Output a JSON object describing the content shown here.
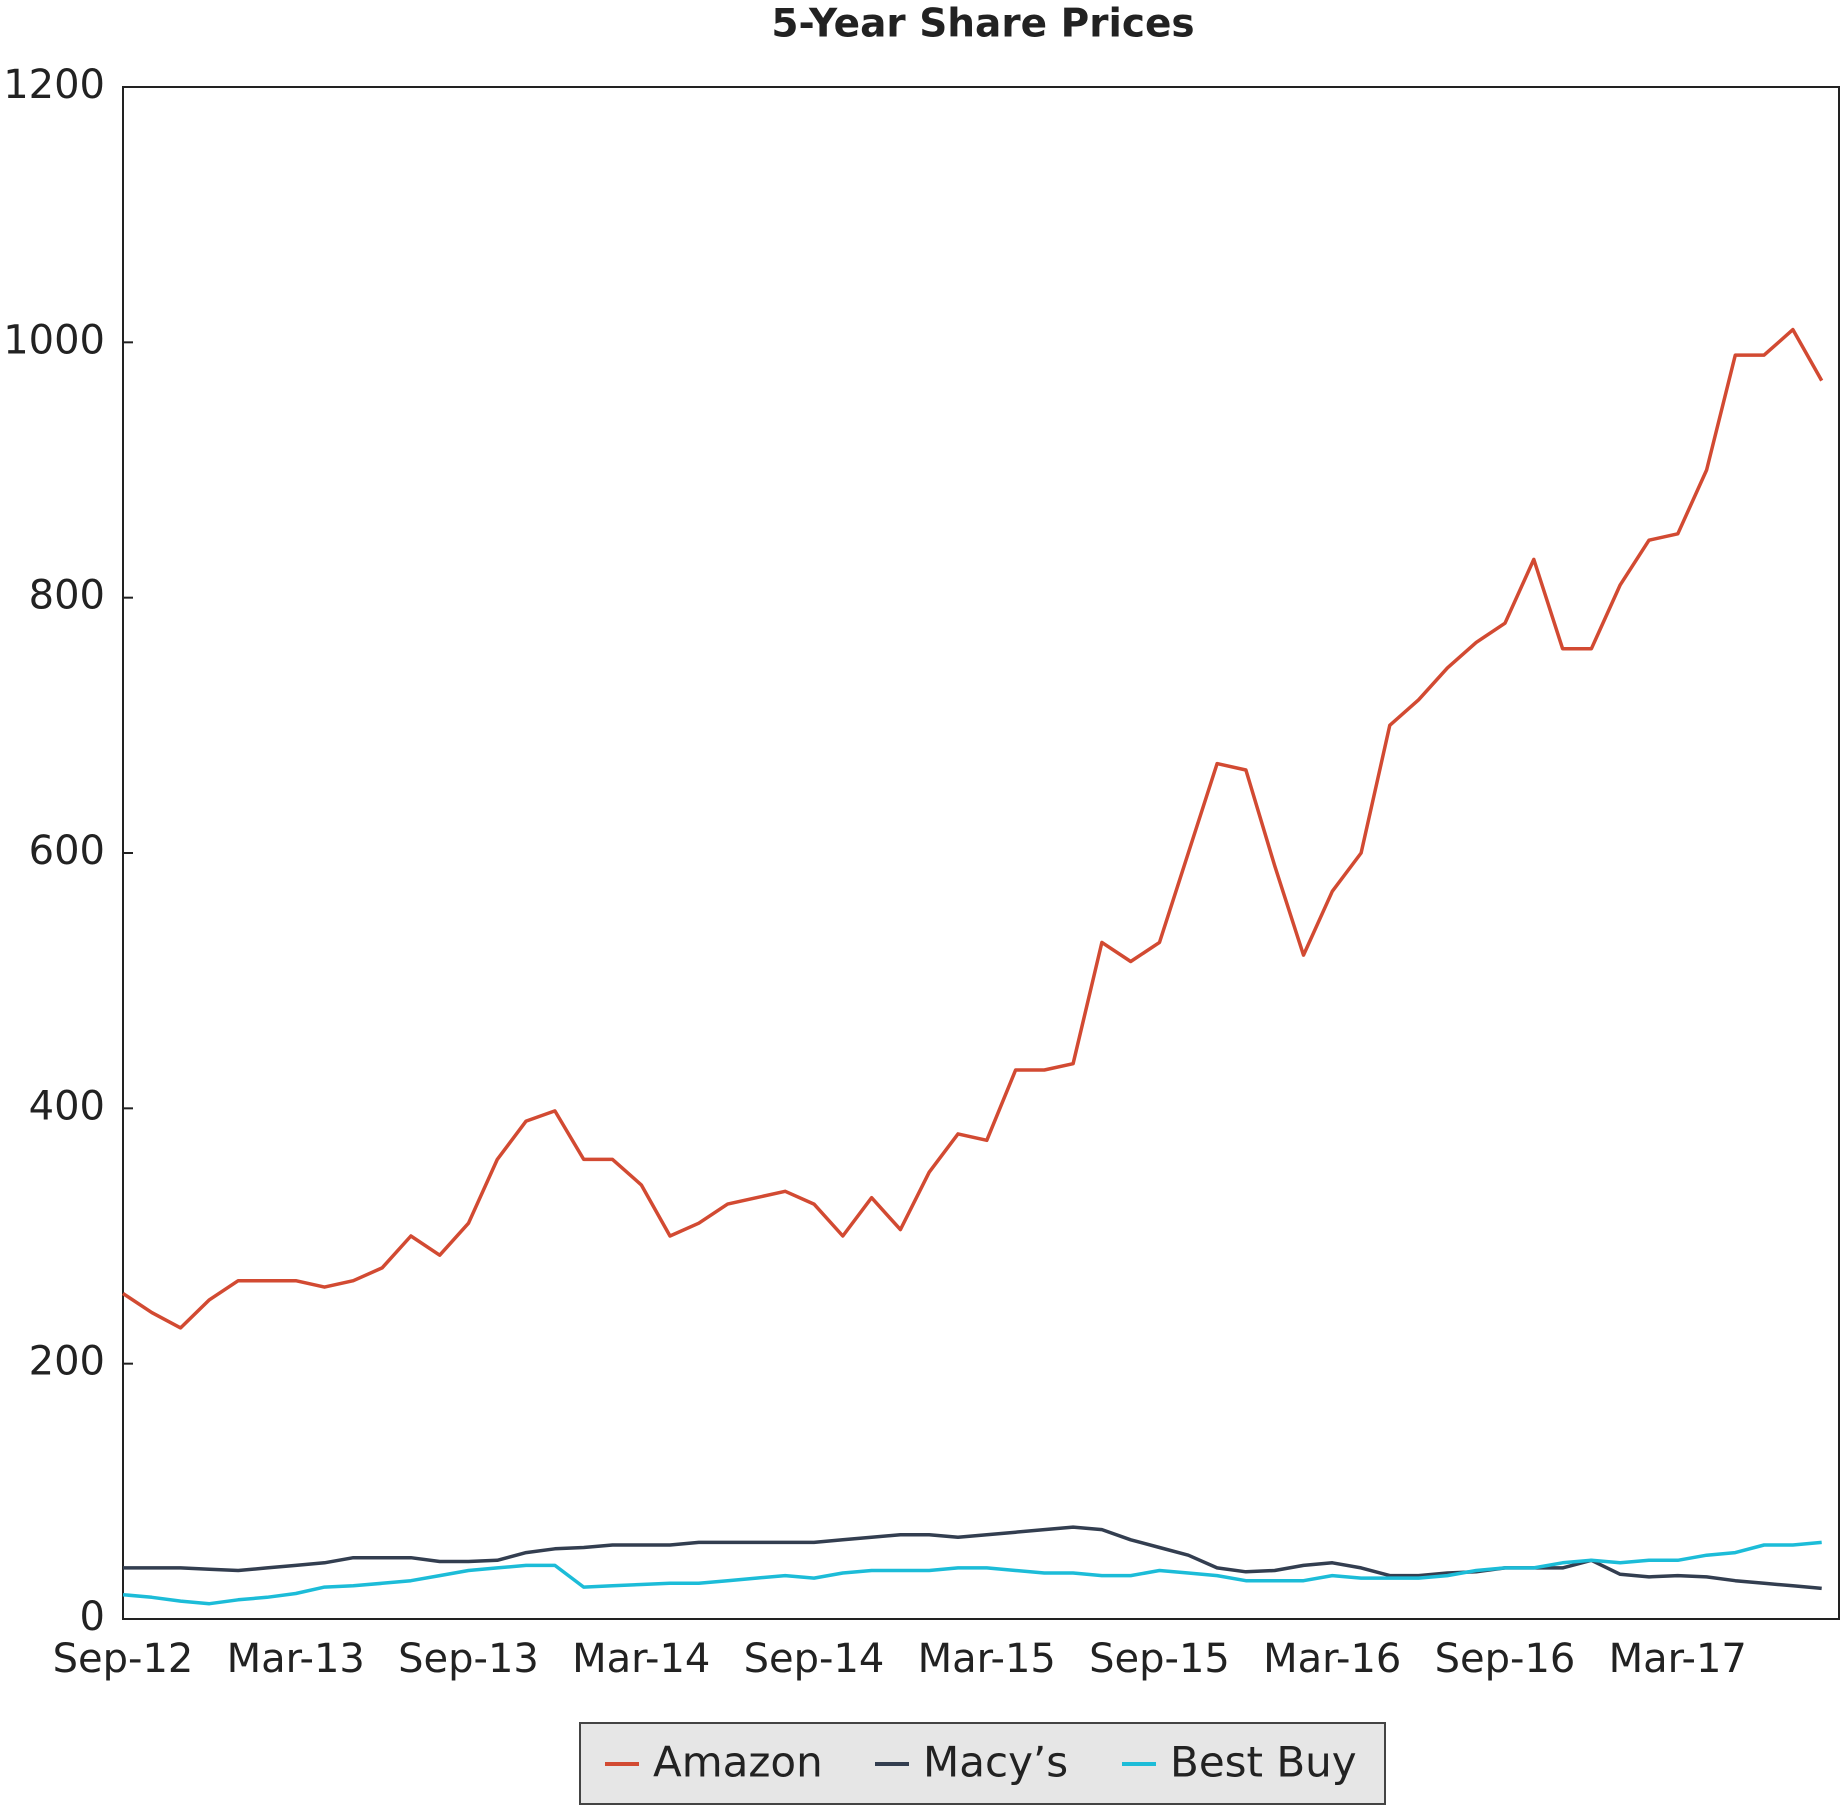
{
  "chart_data": {
    "type": "line",
    "title": "5-Year Share Prices",
    "categories": [
      "Sep-12",
      null,
      null,
      null,
      null,
      null,
      "Mar-13",
      null,
      null,
      null,
      null,
      null,
      "Sep-13",
      null,
      null,
      null,
      null,
      null,
      "Mar-14",
      null,
      null,
      null,
      null,
      null,
      "Sep-14",
      null,
      null,
      null,
      null,
      null,
      "Mar-15",
      null,
      null,
      null,
      null,
      null,
      "Sep-15",
      null,
      null,
      null,
      null,
      null,
      "Mar-16",
      null,
      null,
      null,
      null,
      null,
      "Sep-16",
      null,
      null,
      null,
      null,
      null,
      "Mar-17",
      null,
      null,
      null,
      null,
      null
    ],
    "series": [
      {
        "name": "Amazon",
        "color": "#d24a32",
        "values": [
          255,
          240,
          228,
          250,
          265,
          265,
          265,
          260,
          265,
          275,
          300,
          285,
          310,
          360,
          390,
          398,
          360,
          360,
          340,
          300,
          310,
          325,
          330,
          335,
          325,
          300,
          330,
          305,
          350,
          380,
          375,
          430,
          430,
          435,
          530,
          515,
          530,
          600,
          670,
          665,
          590,
          520,
          570,
          600,
          700,
          720,
          745,
          765,
          780,
          830,
          760,
          760,
          810,
          845,
          850,
          900,
          990,
          990,
          1010,
          970
        ]
      },
      {
        "name": "Macy’s",
        "color": "#333e50",
        "values": [
          40,
          40,
          40,
          39,
          38,
          40,
          42,
          44,
          48,
          48,
          48,
          45,
          45,
          46,
          52,
          55,
          56,
          58,
          58,
          58,
          60,
          60,
          60,
          60,
          60,
          62,
          64,
          66,
          66,
          64,
          66,
          68,
          70,
          72,
          70,
          62,
          56,
          50,
          40,
          37,
          38,
          42,
          44,
          40,
          34,
          34,
          36,
          37,
          40,
          40,
          40,
          46,
          35,
          33,
          34,
          33,
          30,
          28,
          26,
          24
        ]
      },
      {
        "name": "Best Buy",
        "color": "#1cbcd8",
        "values": [
          19,
          17,
          14,
          12,
          15,
          17,
          20,
          25,
          26,
          28,
          30,
          34,
          38,
          40,
          42,
          42,
          25,
          26,
          27,
          28,
          28,
          30,
          32,
          34,
          32,
          36,
          38,
          38,
          38,
          40,
          40,
          38,
          36,
          36,
          34,
          34,
          38,
          36,
          34,
          30,
          30,
          30,
          34,
          32,
          32,
          32,
          34,
          38,
          40,
          40,
          44,
          46,
          44,
          46,
          46,
          50,
          52,
          58,
          58,
          60
        ]
      }
    ],
    "ylim": [
      0,
      1200
    ],
    "yticks": [
      0,
      200,
      400,
      600,
      800,
      1000,
      1200
    ],
    "grid": false,
    "legend": "bottom"
  }
}
